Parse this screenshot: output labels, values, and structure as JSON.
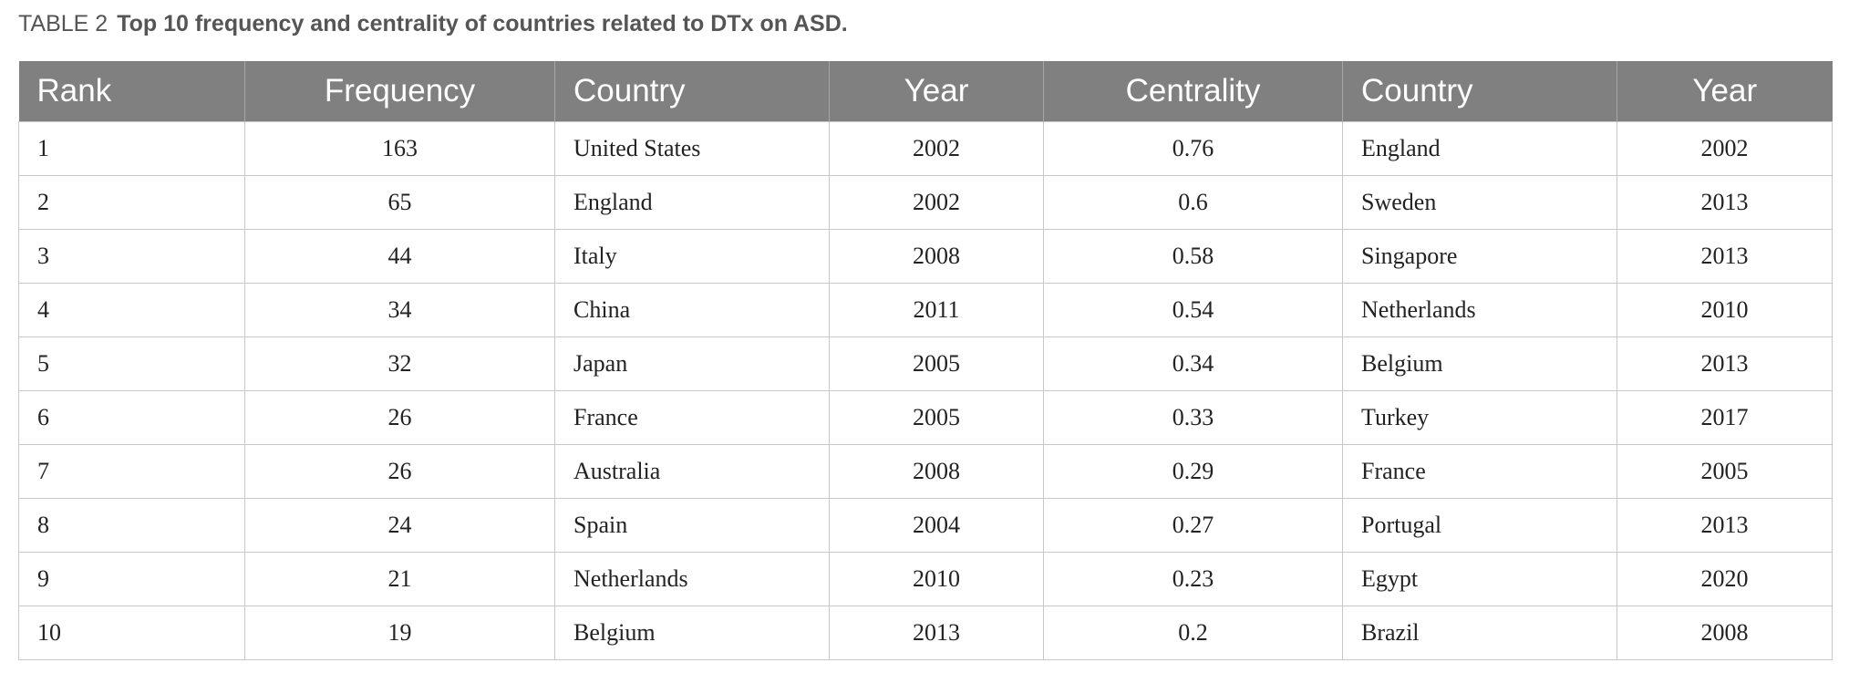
{
  "caption": {
    "label": "TABLE 2",
    "title": "Top 10 frequency and centrality of countries related to DTx on ASD."
  },
  "table": {
    "headers": [
      "Rank",
      "Frequency",
      "Country",
      "Year",
      "Centrality",
      "Country",
      "Year"
    ],
    "rows": [
      [
        "1",
        "163",
        "United States",
        "2002",
        "0.76",
        "England",
        "2002"
      ],
      [
        "2",
        "65",
        "England",
        "2002",
        "0.6",
        "Sweden",
        "2013"
      ],
      [
        "3",
        "44",
        "Italy",
        "2008",
        "0.58",
        "Singapore",
        "2013"
      ],
      [
        "4",
        "34",
        "China",
        "2011",
        "0.54",
        "Netherlands",
        "2010"
      ],
      [
        "5",
        "32",
        "Japan",
        "2005",
        "0.34",
        "Belgium",
        "2013"
      ],
      [
        "6",
        "26",
        "France",
        "2005",
        "0.33",
        "Turkey",
        "2017"
      ],
      [
        "7",
        "26",
        "Australia",
        "2008",
        "0.29",
        "France",
        "2005"
      ],
      [
        "8",
        "24",
        "Spain",
        "2004",
        "0.27",
        "Portugal",
        "2013"
      ],
      [
        "9",
        "21",
        "Netherlands",
        "2010",
        "0.23",
        "Egypt",
        "2020"
      ],
      [
        "10",
        "19",
        "Belgium",
        "2013",
        "0.2",
        "Brazil",
        "2008"
      ]
    ]
  }
}
